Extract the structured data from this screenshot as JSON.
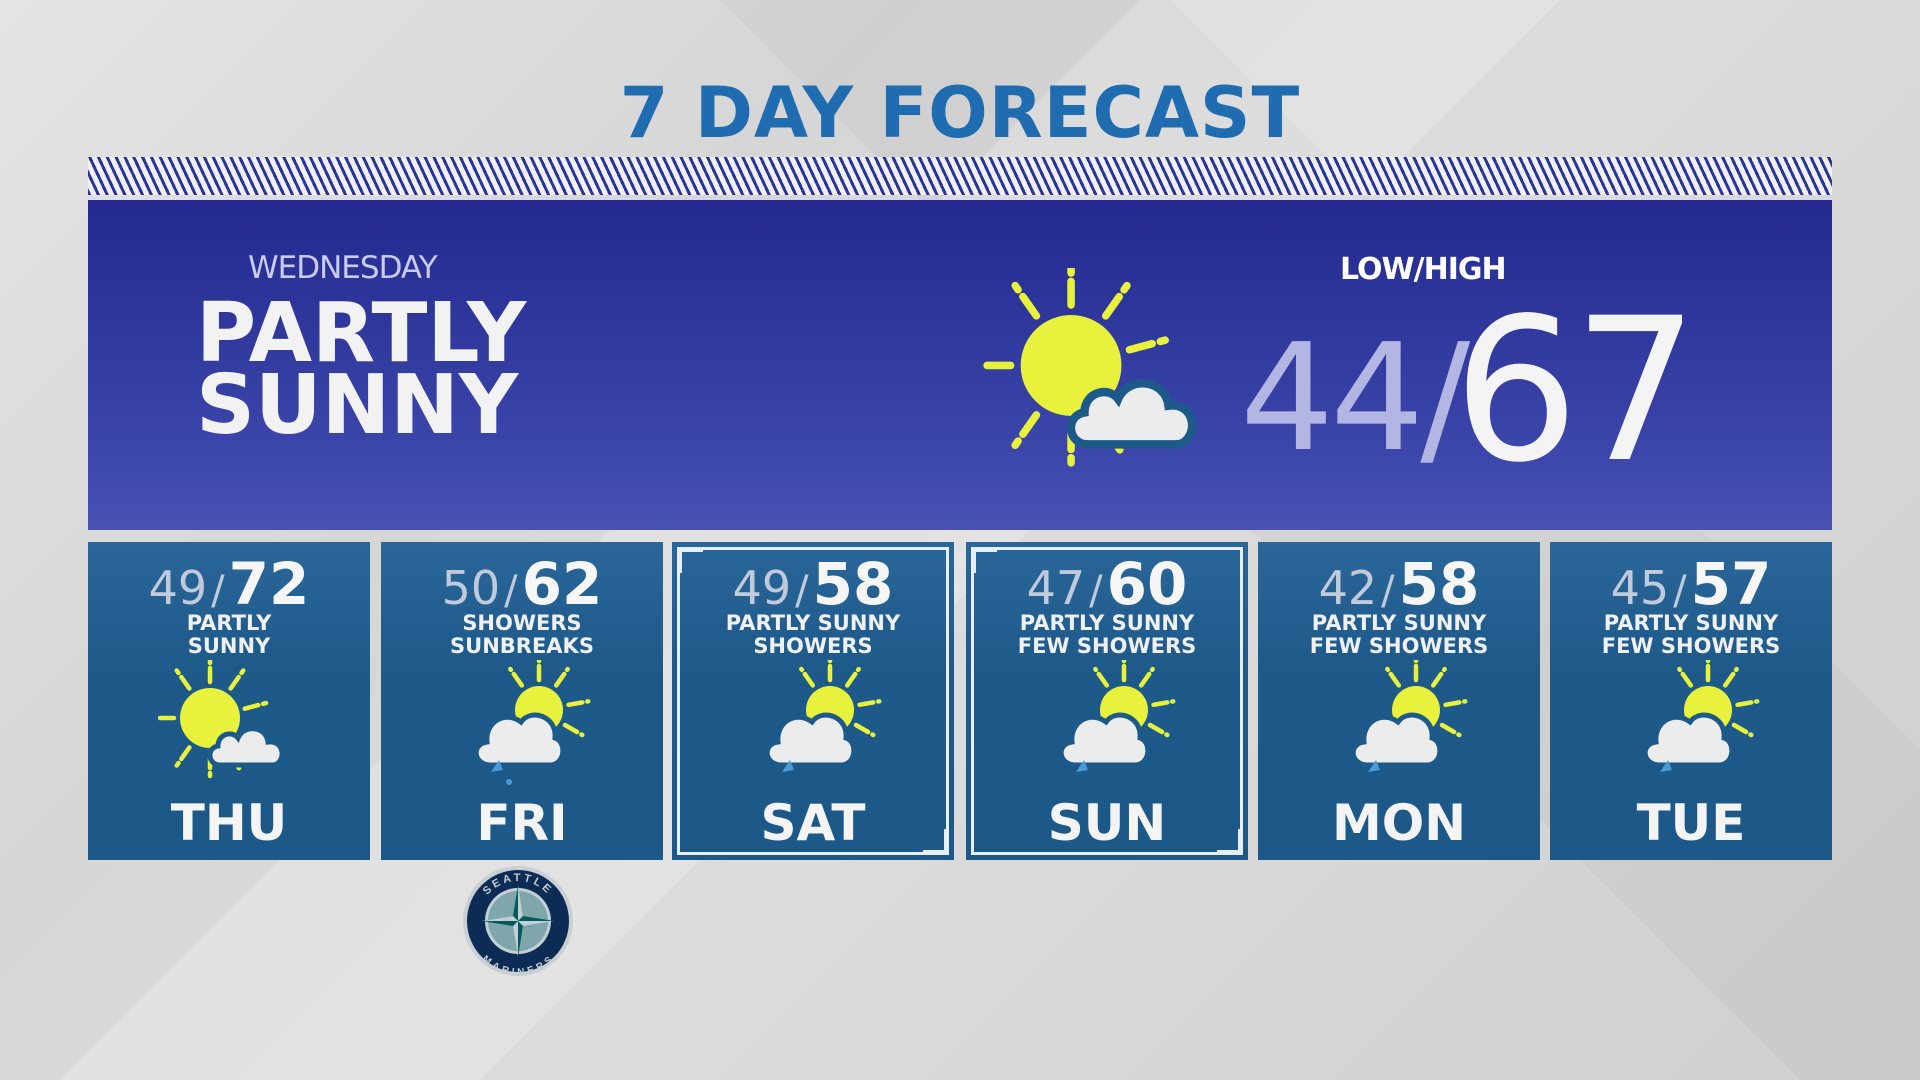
{
  "title": "7 DAY FORECAST",
  "today": {
    "day": "WEDNESDAY",
    "condition_line1": "PARTLY",
    "condition_line2": "SUNNY",
    "low_high_label": "LOW/HIGH",
    "low": "44",
    "separator": "/",
    "high": "67",
    "icon": "partly-sunny-icon"
  },
  "days": [
    {
      "day": "THU",
      "low": "49",
      "high": "72",
      "line1": "PARTLY",
      "line2": "SUNNY",
      "icon": "partly-sunny-icon",
      "selected": false
    },
    {
      "day": "FRI",
      "low": "50",
      "high": "62",
      "line1": "SHOWERS",
      "line2": "SUNBREAKS",
      "icon": "showers-sunbreaks-icon",
      "selected": false
    },
    {
      "day": "SAT",
      "low": "49",
      "high": "58",
      "line1": "PARTLY SUNNY",
      "line2": "SHOWERS",
      "icon": "partly-sunny-showers-icon",
      "selected": true
    },
    {
      "day": "SUN",
      "low": "47",
      "high": "60",
      "line1": "PARTLY SUNNY",
      "line2": "FEW SHOWERS",
      "icon": "partly-sunny-showers-icon",
      "selected": true
    },
    {
      "day": "MON",
      "low": "42",
      "high": "58",
      "line1": "PARTLY SUNNY",
      "line2": "FEW SHOWERS",
      "icon": "partly-sunny-showers-icon",
      "selected": false
    },
    {
      "day": "TUE",
      "low": "45",
      "high": "57",
      "line1": "PARTLY SUNNY",
      "line2": "FEW SHOWERS",
      "icon": "partly-sunny-showers-icon",
      "selected": false
    }
  ],
  "logo": {
    "text_top": "SEATTLE",
    "text_bottom": "MARINERS"
  },
  "colors": {
    "title": "#1f6db0",
    "panel": "#23298f",
    "card": "#1d5a8a",
    "sun": "#e8f23c",
    "cloud": "#ececec"
  }
}
